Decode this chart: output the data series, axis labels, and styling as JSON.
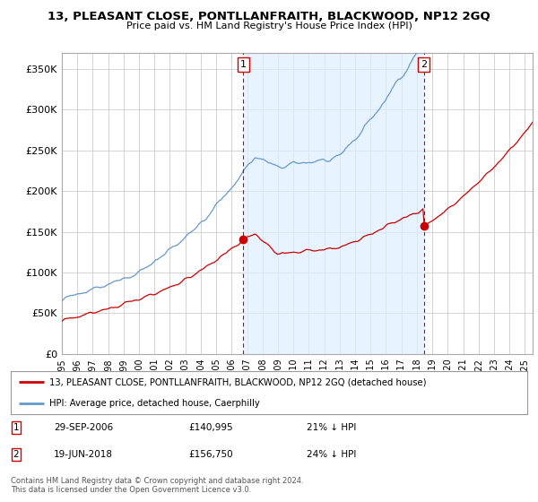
{
  "title": "13, PLEASANT CLOSE, PONTLLANFRAITH, BLACKWOOD, NP12 2GQ",
  "subtitle": "Price paid vs. HM Land Registry's House Price Index (HPI)",
  "ylabel_ticks": [
    "£0",
    "£50K",
    "£100K",
    "£150K",
    "£200K",
    "£250K",
    "£300K",
    "£350K"
  ],
  "ytick_vals": [
    0,
    50000,
    100000,
    150000,
    200000,
    250000,
    300000,
    350000
  ],
  "ylim": [
    0,
    370000
  ],
  "xlim_start": 1995.0,
  "xlim_end": 2025.5,
  "sale1_date": 2006.75,
  "sale1_price": 140995,
  "sale1_label": "1",
  "sale1_display": "29-SEP-2006",
  "sale1_price_str": "£140,995",
  "sale1_hpi": "21% ↓ HPI",
  "sale2_date": 2018.46,
  "sale2_price": 156750,
  "sale2_label": "2",
  "sale2_display": "19-JUN-2018",
  "sale2_price_str": "£156,750",
  "sale2_hpi": "24% ↓ HPI",
  "red_line_color": "#cc0000",
  "blue_line_color": "#6699cc",
  "shade_color": "#ddeeff",
  "vline_color": "#cc0000",
  "legend1_label": "13, PLEASANT CLOSE, PONTLLANFRAITH, BLACKWOOD, NP12 2GQ (detached house)",
  "legend2_label": "HPI: Average price, detached house, Caerphilly",
  "footer": "Contains HM Land Registry data © Crown copyright and database right 2024.\nThis data is licensed under the Open Government Licence v3.0.",
  "background_color": "#ffffff",
  "plot_bg_color": "#ffffff",
  "grid_color": "#cccccc"
}
